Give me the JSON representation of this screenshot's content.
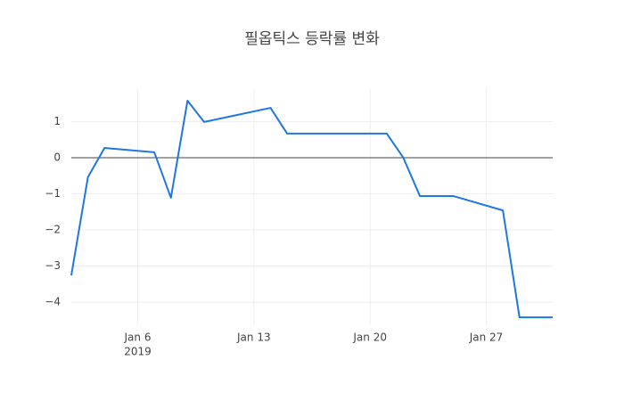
{
  "chart_data": {
    "type": "line",
    "title": "필옵틱스 등락률 변화",
    "x": [
      "2019-01-02",
      "2019-01-03",
      "2019-01-04",
      "2019-01-07",
      "2019-01-08",
      "2019-01-09",
      "2019-01-10",
      "2019-01-14",
      "2019-01-15",
      "2019-01-21",
      "2019-01-22",
      "2019-01-23",
      "2019-01-25",
      "2019-01-28",
      "2019-01-29",
      "2019-01-31"
    ],
    "series": [
      {
        "name": "등락률",
        "color": "#1f77e0",
        "values": [
          -3.26,
          -0.54,
          0.27,
          0.15,
          -1.11,
          1.58,
          0.99,
          1.38,
          0.67,
          0.67,
          0,
          -1.06,
          -1.06,
          -1.46,
          -4.42,
          -4.42
        ]
      }
    ],
    "xlim": [
      "2019-01-02",
      "2019-01-31"
    ],
    "xticks": [
      {
        "value": "2019-01-06",
        "label": "Jan 6",
        "sublabel": "2019"
      },
      {
        "value": "2019-01-13",
        "label": "Jan 13"
      },
      {
        "value": "2019-01-20",
        "label": "Jan 20"
      },
      {
        "value": "2019-01-27",
        "label": "Jan 27"
      }
    ],
    "ylim": [
      -4.64,
      1.9
    ],
    "yticks": [
      1,
      0,
      {
        "value": -1,
        "label": "−1"
      },
      {
        "value": -2,
        "label": "−2"
      },
      {
        "value": -3,
        "label": "−3"
      },
      {
        "value": -4,
        "label": "−4"
      }
    ],
    "grid": true,
    "zeroline": true
  }
}
